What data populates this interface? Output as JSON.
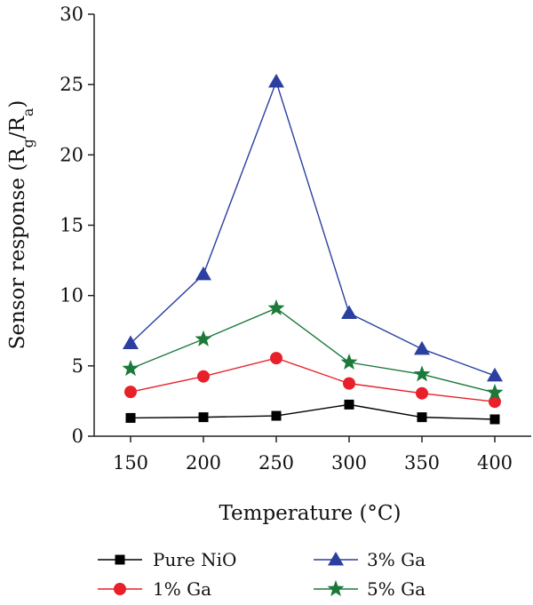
{
  "chart_data": {
    "type": "line",
    "xlabel": "Temperature (°C)",
    "ylabel": {
      "main": "Sensor response (R",
      "sub1": "g",
      "mid": "/R",
      "sub2": "a",
      "end": ")"
    },
    "x": [
      150,
      200,
      250,
      300,
      350,
      400
    ],
    "xticks": [
      "150",
      "200",
      "250",
      "300",
      "350",
      "400"
    ],
    "xlim": [
      125,
      425
    ],
    "ylim": [
      0,
      30
    ],
    "yticks": [
      "0",
      "5",
      "10",
      "15",
      "20",
      "25",
      "30"
    ],
    "grid": false,
    "legend_position": "bottom",
    "series": [
      {
        "name": "Pure NiO",
        "color": "#000000",
        "marker": "square",
        "values": [
          1.3,
          1.35,
          1.45,
          2.25,
          1.35,
          1.2
        ]
      },
      {
        "name": "1% Ga",
        "color": "#e8202a",
        "marker": "circle",
        "values": [
          3.15,
          4.25,
          5.55,
          3.75,
          3.05,
          2.45
        ]
      },
      {
        "name": "3% Ga",
        "color": "#2b3fa0",
        "marker": "triangle",
        "values": [
          6.6,
          11.5,
          25.2,
          8.75,
          6.2,
          4.3
        ]
      },
      {
        "name": "5% Ga",
        "color": "#1b7a3a",
        "marker": "star",
        "values": [
          4.8,
          6.9,
          9.1,
          5.25,
          4.4,
          3.1
        ]
      }
    ]
  }
}
